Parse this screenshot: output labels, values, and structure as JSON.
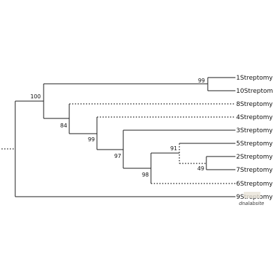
{
  "tree": {
    "tips": {
      "t1": "1Streptomy",
      "t10": "10Streptom",
      "t8": "8Streptomy",
      "t4": "4Streptomy",
      "t3": "3Streptomy",
      "t5": "5Streptomy",
      "t2": "2Streptomy",
      "t7": "7Streptomy",
      "t6": "6Streptomy",
      "t9": "9Streptomy"
    },
    "supports": {
      "n100": "100",
      "n99a": "99",
      "n84": "84",
      "n99b": "99",
      "n97": "97",
      "n98": "98",
      "n91": "91",
      "n49": "49"
    }
  }
}
